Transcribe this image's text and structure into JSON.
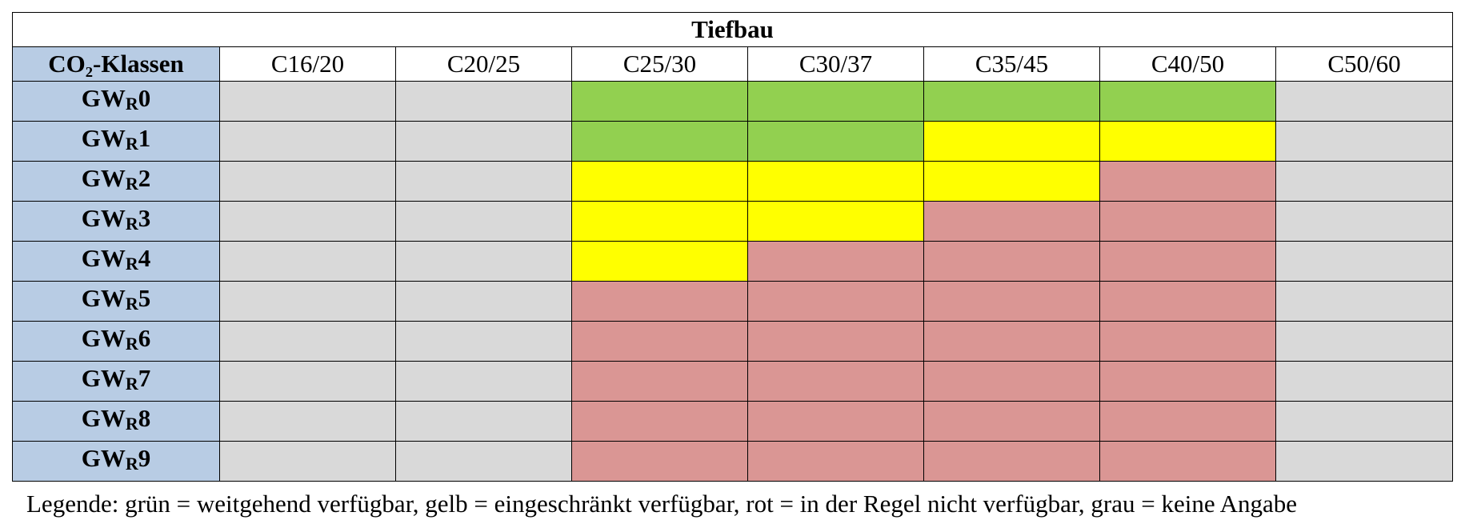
{
  "table": {
    "title": "Tiefbau",
    "class_header": "CO₂-Klassen",
    "columns": [
      "C16/20",
      "C20/25",
      "C25/30",
      "C30/37",
      "C35/45",
      "C40/50",
      "C50/60"
    ],
    "rows": [
      {
        "label_main": "GW",
        "label_sub": "R",
        "label_num": "0",
        "cells": [
          "gray",
          "gray",
          "green",
          "green",
          "green",
          "green",
          "gray"
        ]
      },
      {
        "label_main": "GW",
        "label_sub": "R",
        "label_num": "1",
        "cells": [
          "gray",
          "gray",
          "green",
          "green",
          "yellow",
          "yellow",
          "gray"
        ]
      },
      {
        "label_main": "GW",
        "label_sub": "R",
        "label_num": "2",
        "cells": [
          "gray",
          "gray",
          "yellow",
          "yellow",
          "yellow",
          "red",
          "gray"
        ]
      },
      {
        "label_main": "GW",
        "label_sub": "R",
        "label_num": "3",
        "cells": [
          "gray",
          "gray",
          "yellow",
          "yellow",
          "red",
          "red",
          "gray"
        ]
      },
      {
        "label_main": "GW",
        "label_sub": "R",
        "label_num": "4",
        "cells": [
          "gray",
          "gray",
          "yellow",
          "red",
          "red",
          "red",
          "gray"
        ]
      },
      {
        "label_main": "GW",
        "label_sub": "R",
        "label_num": "5",
        "cells": [
          "gray",
          "gray",
          "red",
          "red",
          "red",
          "red",
          "gray"
        ]
      },
      {
        "label_main": "GW",
        "label_sub": "R",
        "label_num": "6",
        "cells": [
          "gray",
          "gray",
          "red",
          "red",
          "red",
          "red",
          "gray"
        ]
      },
      {
        "label_main": "GW",
        "label_sub": "R",
        "label_num": "7",
        "cells": [
          "gray",
          "gray",
          "red",
          "red",
          "red",
          "red",
          "gray"
        ]
      },
      {
        "label_main": "GW",
        "label_sub": "R",
        "label_num": "8",
        "cells": [
          "gray",
          "gray",
          "red",
          "red",
          "red",
          "red",
          "gray"
        ]
      },
      {
        "label_main": "GW",
        "label_sub": "R",
        "label_num": "9",
        "cells": [
          "gray",
          "gray",
          "red",
          "red",
          "red",
          "red",
          "gray"
        ]
      }
    ]
  },
  "colors": {
    "green": "#92d050",
    "yellow": "#ffff00",
    "red": "#da9694",
    "gray": "#d9d9d9",
    "header_blue": "#b8cce4"
  },
  "legend": {
    "text": "Legende: grün = weitgehend verfügbar, gelb = eingeschränkt verfügbar, rot = in der Regel nicht verfügbar, grau = keine Angabe"
  }
}
